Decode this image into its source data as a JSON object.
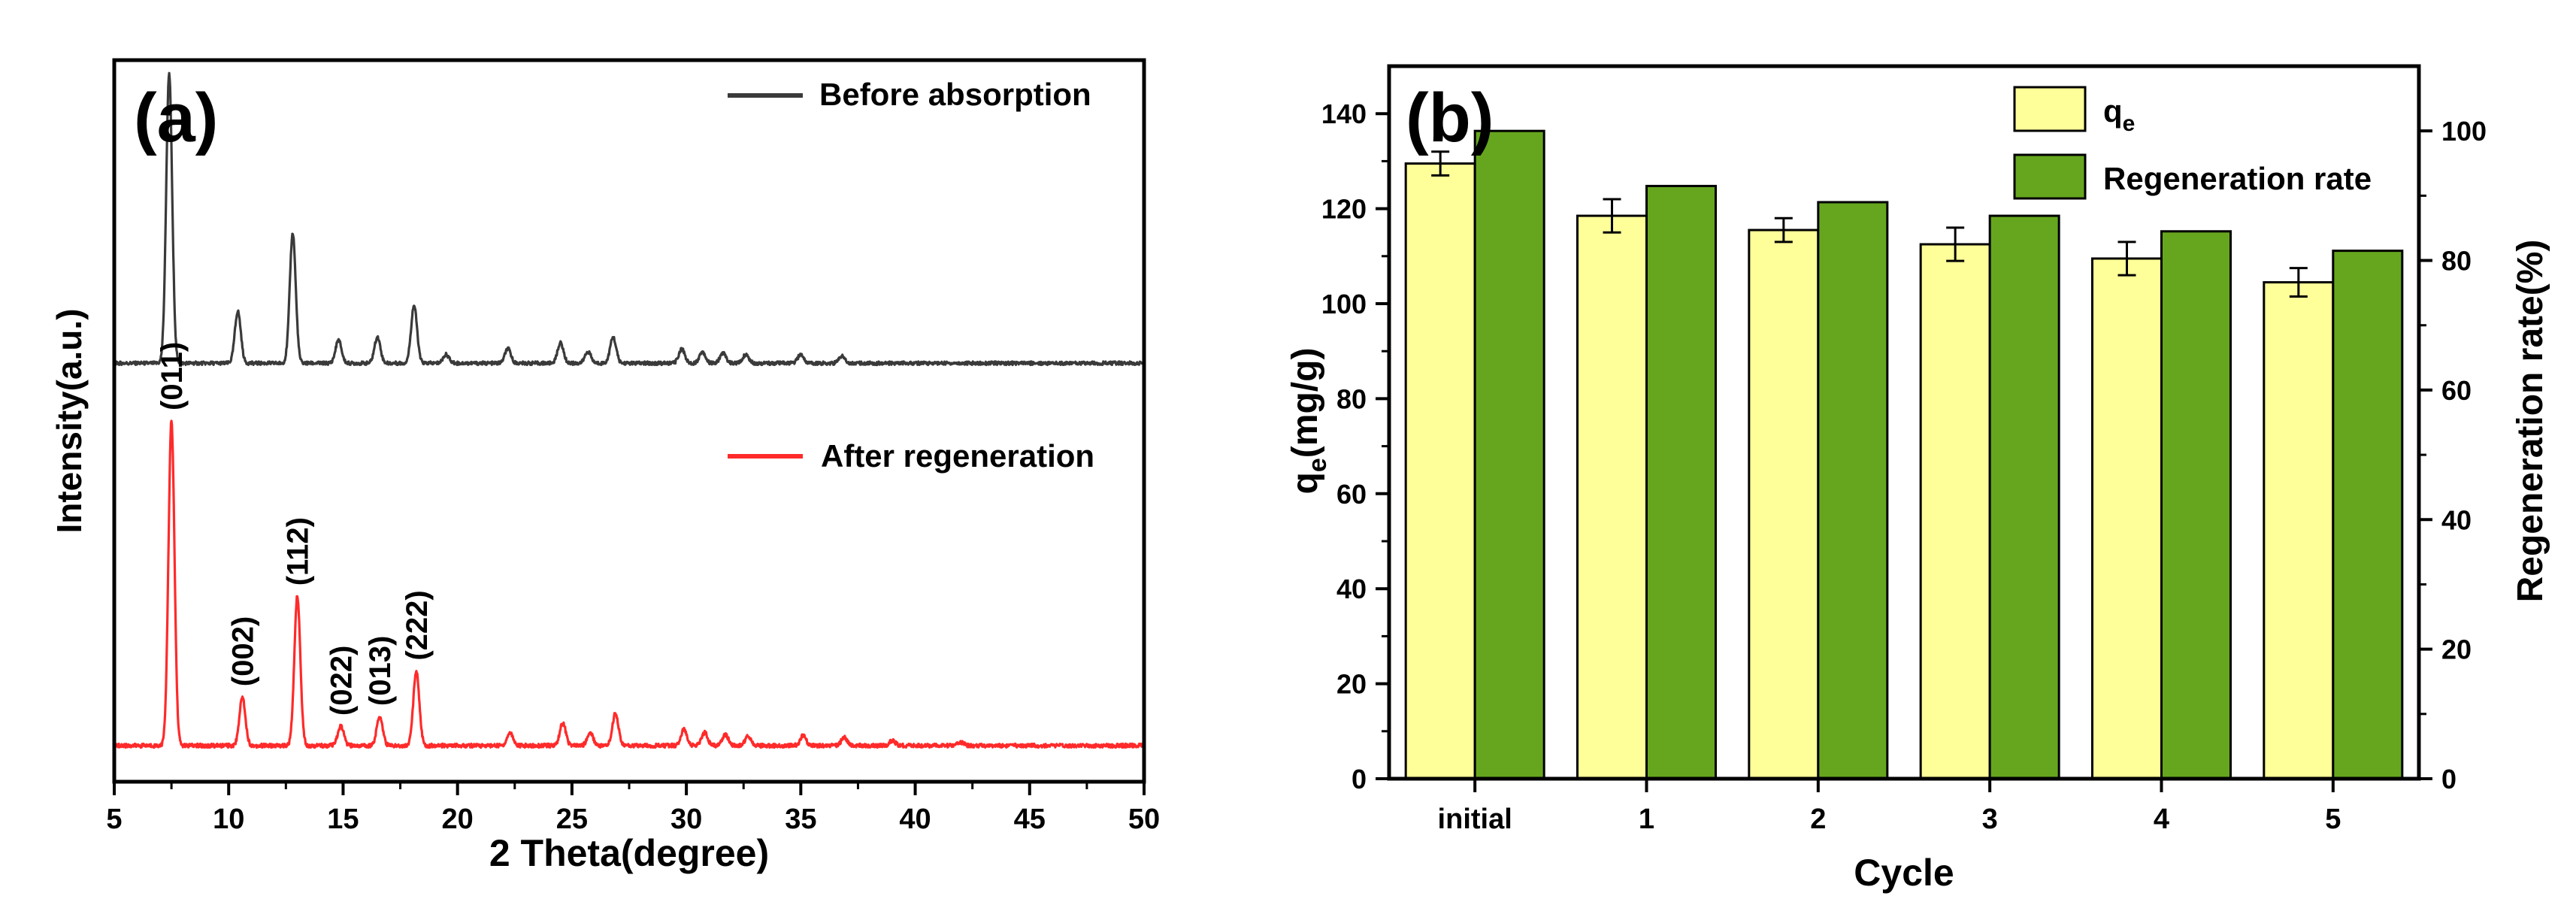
{
  "colors": {
    "before": "#3a3a3a",
    "after": "#ff2a2a",
    "qe_bar": "#ffff99",
    "regen_bar": "#66a61e",
    "axis": "#000000"
  },
  "chart_data": [
    {
      "id": "a",
      "type": "line",
      "panel_label": "(a)",
      "xlabel": "2 Theta(degree)",
      "ylabel": "Intensity(a.u.)",
      "xlim": [
        5,
        50
      ],
      "xticks": [
        5,
        10,
        15,
        20,
        25,
        30,
        35,
        40,
        45,
        50
      ],
      "yticks_shown": false,
      "legend": {
        "placement": "top-right"
      },
      "series": [
        {
          "name": "Before absorption",
          "color_key": "before",
          "offset": 0.58,
          "scale": 0.4,
          "peaks": [
            {
              "x": 7.4,
              "h": 1.0
            },
            {
              "x": 10.4,
              "h": 0.18
            },
            {
              "x": 12.8,
              "h": 0.45
            },
            {
              "x": 14.8,
              "h": 0.08
            },
            {
              "x": 16.5,
              "h": 0.09
            },
            {
              "x": 18.1,
              "h": 0.2
            },
            {
              "x": 19.5,
              "h": 0.03
            },
            {
              "x": 22.2,
              "h": 0.05
            },
            {
              "x": 24.5,
              "h": 0.07
            },
            {
              "x": 25.7,
              "h": 0.04
            },
            {
              "x": 26.8,
              "h": 0.09
            },
            {
              "x": 29.8,
              "h": 0.05
            },
            {
              "x": 30.7,
              "h": 0.04
            },
            {
              "x": 31.6,
              "h": 0.035
            },
            {
              "x": 32.6,
              "h": 0.03
            },
            {
              "x": 35.0,
              "h": 0.03
            },
            {
              "x": 36.8,
              "h": 0.025
            }
          ]
        },
        {
          "name": "After regeneration",
          "color_key": "after",
          "offset": 0.05,
          "scale": 0.45,
          "peaks": [
            {
              "x": 7.5,
              "h": 1.0
            },
            {
              "x": 10.6,
              "h": 0.15
            },
            {
              "x": 13.0,
              "h": 0.46
            },
            {
              "x": 14.9,
              "h": 0.06
            },
            {
              "x": 16.6,
              "h": 0.09
            },
            {
              "x": 18.2,
              "h": 0.23
            },
            {
              "x": 22.3,
              "h": 0.04
            },
            {
              "x": 24.6,
              "h": 0.07
            },
            {
              "x": 25.8,
              "h": 0.04
            },
            {
              "x": 26.9,
              "h": 0.1
            },
            {
              "x": 29.9,
              "h": 0.05
            },
            {
              "x": 30.8,
              "h": 0.04
            },
            {
              "x": 31.7,
              "h": 0.035
            },
            {
              "x": 32.7,
              "h": 0.03
            },
            {
              "x": 35.1,
              "h": 0.03
            },
            {
              "x": 36.9,
              "h": 0.025
            },
            {
              "x": 39.0,
              "h": 0.015
            },
            {
              "x": 42.0,
              "h": 0.01
            }
          ]
        }
      ],
      "annotations": [
        {
          "text": "(011)",
          "x": 7.5
        },
        {
          "text": "(002)",
          "x": 10.6
        },
        {
          "text": "(112)",
          "x": 13.0
        },
        {
          "text": "(022)",
          "x": 14.9
        },
        {
          "text": "(013)",
          "x": 16.6
        },
        {
          "text": "(222)",
          "x": 18.2
        }
      ]
    },
    {
      "id": "b",
      "type": "bar",
      "panel_label": "(b)",
      "xlabel": "Cycle",
      "ylabel": "q",
      "ylabel_sub": "e",
      "ylabel_unit": "(mg/g)",
      "y2label": "Regeneration rate(%)",
      "categories": [
        "initial",
        "1",
        "2",
        "3",
        "4",
        "5"
      ],
      "ylim": [
        0,
        150
      ],
      "yticks": [
        0,
        20,
        40,
        60,
        80,
        100,
        120,
        140
      ],
      "y2lim": [
        0,
        110
      ],
      "y2ticks": [
        0,
        20,
        40,
        60,
        80,
        100
      ],
      "legend": {
        "placement": "top-right"
      },
      "series": [
        {
          "name": "q",
          "name_sub": "e",
          "axis": "left",
          "color_key": "qe_bar",
          "values": [
            129.5,
            118.5,
            115.5,
            112.5,
            109.5,
            104.5
          ],
          "errors": [
            2.5,
            3.5,
            2.5,
            3.5,
            3.5,
            3.0
          ]
        },
        {
          "name": "Regeneration rate",
          "axis": "right",
          "color_key": "regen_bar",
          "values": [
            100,
            91.5,
            89,
            86.9,
            84.5,
            81.5
          ]
        }
      ]
    }
  ]
}
